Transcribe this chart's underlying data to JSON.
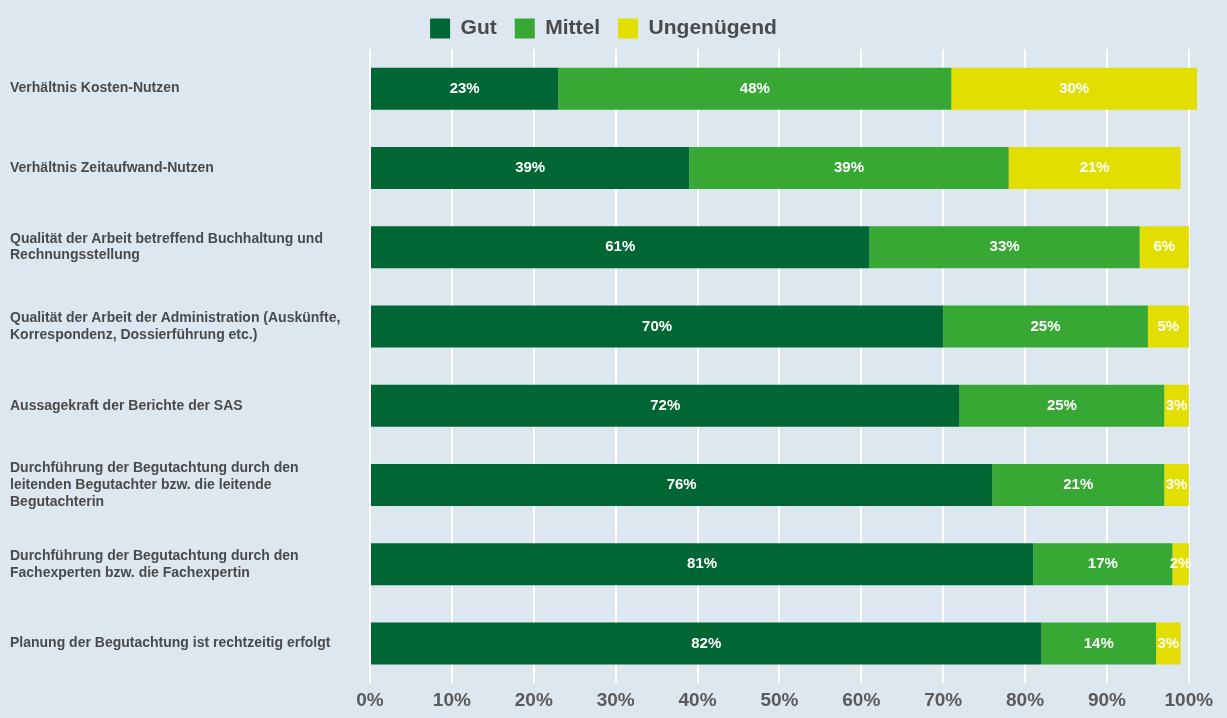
{
  "chart_data": {
    "type": "bar",
    "orientation": "horizontal",
    "stacked": true,
    "categories": [
      "Verhältnis Kosten-Nutzen",
      "Verhältnis Zeitaufwand-Nutzen",
      "Qualität der Arbeit betreffend Buchhaltung und Rechnungsstellung",
      "Qualität der Arbeit der Administration (Auskünfte, Korrespondenz, Dossierführung etc.)",
      "Aussagekraft der Berichte der SAS",
      "Durchführung der Begutachtung durch den leitenden Begutachter bzw. die leitende Begutachterin",
      "Durchführung der Begutachtung durch den Fachexperten bzw. die Fachexpertin",
      "Planung der Begutachtung ist rechtzeitig erfolgt"
    ],
    "series": [
      {
        "name": "Gut",
        "color": "#006633",
        "values": [
          23,
          39,
          61,
          70,
          72,
          76,
          81,
          82
        ]
      },
      {
        "name": "Mittel",
        "color": "#36a833",
        "values": [
          48,
          39,
          33,
          25,
          25,
          21,
          17,
          14
        ]
      },
      {
        "name": "Ungenügend",
        "color": "#e2de00",
        "values": [
          30,
          21,
          6,
          5,
          3,
          3,
          2,
          3
        ]
      }
    ],
    "xlim": [
      0,
      101
    ],
    "xticks": [
      {
        "value": 0,
        "label": "0%"
      },
      {
        "value": 10,
        "label": "10%"
      },
      {
        "value": 20,
        "label": "20%"
      },
      {
        "value": 30,
        "label": "30%"
      },
      {
        "value": 40,
        "label": "40%"
      },
      {
        "value": 50,
        "label": "50%"
      },
      {
        "value": 60,
        "label": "60%"
      },
      {
        "value": 70,
        "label": "70%"
      },
      {
        "value": 80,
        "label": "80%"
      },
      {
        "value": 90,
        "label": "90%"
      },
      {
        "value": 100,
        "label": "100%"
      }
    ],
    "value_labels": [
      [
        "23%",
        "39%",
        "61%",
        "70%",
        "72%",
        "76%",
        "81%",
        "82%"
      ],
      [
        "48%",
        "39%",
        "33%",
        "25%",
        "25%",
        "21%",
        "17%",
        "14%"
      ],
      [
        "30%",
        "21%",
        "6%",
        "5%",
        "3%",
        "3%",
        "2%",
        "3%"
      ]
    ],
    "grid": "x",
    "legend": "top"
  }
}
